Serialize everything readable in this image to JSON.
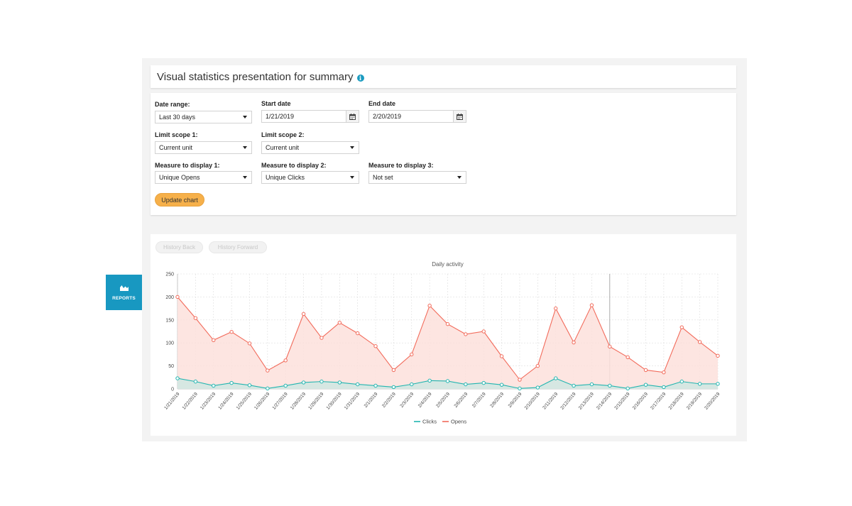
{
  "page": {
    "title": "Visual statistics presentation for summary"
  },
  "form": {
    "date_range": {
      "label": "Date range:",
      "value": "Last 30 days"
    },
    "start_date": {
      "label": "Start date",
      "value": "1/21/2019"
    },
    "end_date": {
      "label": "End date",
      "value": "2/20/2019"
    },
    "limit_scope_1": {
      "label": "Limit scope 1:",
      "value": "Current unit"
    },
    "limit_scope_2": {
      "label": "Limit scope 2:",
      "value": "Current unit"
    },
    "measure_1": {
      "label": "Measure to display 1:",
      "value": "Unique Opens"
    },
    "measure_2": {
      "label": "Measure to display 2:",
      "value": "Unique Clicks"
    },
    "measure_3": {
      "label": "Measure to display 3:",
      "value": "Not set"
    },
    "update_button": "Update chart"
  },
  "history": {
    "back": "History Back",
    "forward": "History Forward"
  },
  "sidebar": {
    "reports_label": "REPORTS"
  },
  "colors": {
    "opens": "#f26b5b",
    "opens_fill": "#fde1dc",
    "clicks": "#22b5b0",
    "clicks_fill": "#cfe7e2",
    "accent": "#1898c1",
    "button": "#f6b04a"
  },
  "chart_data": {
    "type": "line",
    "title": "Daily activity",
    "ylim": [
      0,
      250
    ],
    "yticks": [
      0,
      50,
      100,
      150,
      200,
      250
    ],
    "grid": true,
    "legend": "bottom",
    "categories": [
      "1/21/2019",
      "1/22/2019",
      "1/23/2019",
      "1/24/2019",
      "1/25/2019",
      "1/26/2019",
      "1/27/2019",
      "1/28/2019",
      "1/29/2019",
      "1/30/2019",
      "1/31/2019",
      "2/1/2019",
      "2/2/2019",
      "2/3/2019",
      "2/4/2019",
      "2/5/2019",
      "2/6/2019",
      "2/7/2019",
      "2/8/2019",
      "2/9/2019",
      "2/10/2019",
      "2/11/2019",
      "2/12/2019",
      "2/13/2019",
      "2/14/2019",
      "2/15/2019",
      "2/16/2019",
      "2/17/2019",
      "2/18/2019",
      "2/19/2019",
      "2/20/2019"
    ],
    "series": [
      {
        "name": "Clicks",
        "values": [
          23,
          16,
          7,
          13,
          8,
          1,
          7,
          14,
          16,
          14,
          10,
          7,
          4,
          10,
          18,
          17,
          10,
          13,
          9,
          1,
          3,
          23,
          7,
          10,
          7,
          1,
          9,
          4,
          16,
          11,
          11
        ]
      },
      {
        "name": "Opens",
        "values": [
          200,
          154,
          106,
          124,
          99,
          40,
          62,
          163,
          111,
          144,
          121,
          93,
          41,
          75,
          181,
          141,
          119,
          125,
          71,
          20,
          50,
          175,
          101,
          182,
          92,
          69,
          41,
          36,
          134,
          102,
          72
        ]
      }
    ]
  }
}
